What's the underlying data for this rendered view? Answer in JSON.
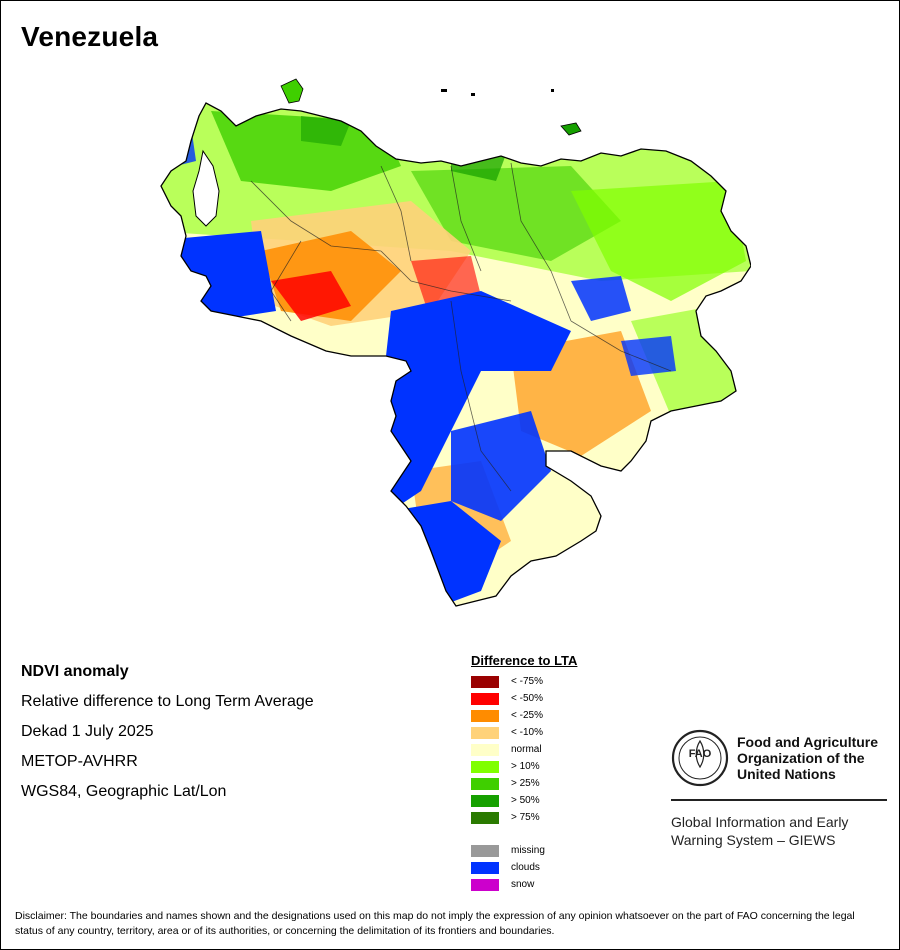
{
  "title": "Venezuela",
  "info": {
    "product": "NDVI anomaly",
    "description": "Relative difference to Long Term Average",
    "period": "Dekad 1 July 2025",
    "sensor": "METOP-AVHRR",
    "projection": "WGS84, Geographic Lat/Lon"
  },
  "legend": {
    "title": "Difference to LTA",
    "classes": [
      {
        "label": "< -75%",
        "color": "#9a0000"
      },
      {
        "label": "< -50%",
        "color": "#ff0000"
      },
      {
        "label": "< -25%",
        "color": "#ff8c00"
      },
      {
        "label": "< -10%",
        "color": "#ffd27a"
      },
      {
        "label": "normal",
        "color": "#ffffc8"
      },
      {
        "label": "> 10%",
        "color": "#80ff00"
      },
      {
        "label": "> 25%",
        "color": "#3fcf00"
      },
      {
        "label": "> 50%",
        "color": "#16a000"
      },
      {
        "label": "> 75%",
        "color": "#2a7a00"
      }
    ],
    "special": [
      {
        "label": "missing",
        "color": "#999999"
      },
      {
        "label": "clouds",
        "color": "#0033ff"
      },
      {
        "label": "snow",
        "color": "#cc00cc"
      }
    ]
  },
  "fao": {
    "logo_text": "FAO",
    "name_line1": "Food and Agriculture",
    "name_line2": "Organization of the",
    "name_line3": "United Nations",
    "giews_line1": "Global Information and Early",
    "giews_line2": "Warning System – GIEWS"
  },
  "disclaimer": "Disclaimer: The boundaries and names shown and the designations used on this map do not imply the expression of any opinion whatsoever on the part of FAO concerning the legal status of any country, territory, area or of its authorities, or concerning the delimitation of its frontiers and boundaries."
}
